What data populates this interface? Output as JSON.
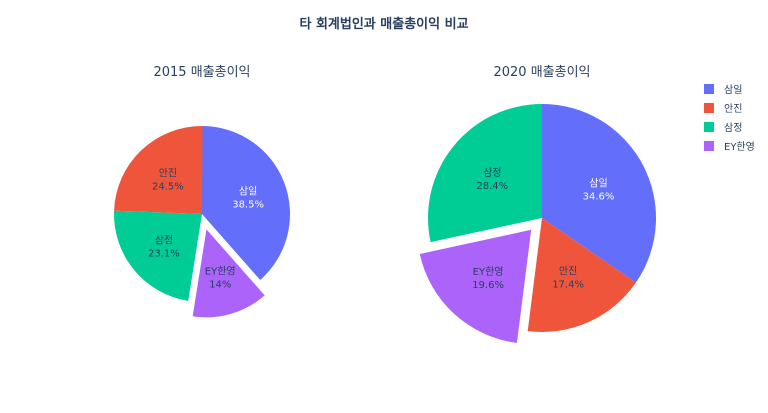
{
  "title": "타 회계법인과 매출총이익 비교",
  "colors": {
    "삼일": "#636efa",
    "안진": "#ef553b",
    "삼정": "#00cc96",
    "EY한영": "#ab63fa"
  },
  "legend": {
    "position": "top-right",
    "items": [
      "삼일",
      "안진",
      "삼정",
      "EY한영"
    ]
  },
  "chart_data": [
    {
      "type": "pie",
      "title": "2015 매출총이익",
      "slices": [
        {
          "label": "삼일",
          "percent": 38.5,
          "pct_text": "38.5%"
        },
        {
          "label": "EY한영",
          "percent": 14.0,
          "pct_text": "14%",
          "pulled": true
        },
        {
          "label": "삼정",
          "percent": 23.1,
          "pct_text": "23.1%"
        },
        {
          "label": "안진",
          "percent": 24.5,
          "pct_text": "24.5%"
        }
      ]
    },
    {
      "type": "pie",
      "title": "2020 매출총이익",
      "slices": [
        {
          "label": "삼일",
          "percent": 34.6,
          "pct_text": "34.6%"
        },
        {
          "label": "안진",
          "percent": 17.4,
          "pct_text": "17.4%"
        },
        {
          "label": "EY한영",
          "percent": 19.6,
          "pct_text": "19.6%",
          "pulled": true
        },
        {
          "label": "삼정",
          "percent": 28.4,
          "pct_text": "28.4%"
        }
      ]
    }
  ]
}
